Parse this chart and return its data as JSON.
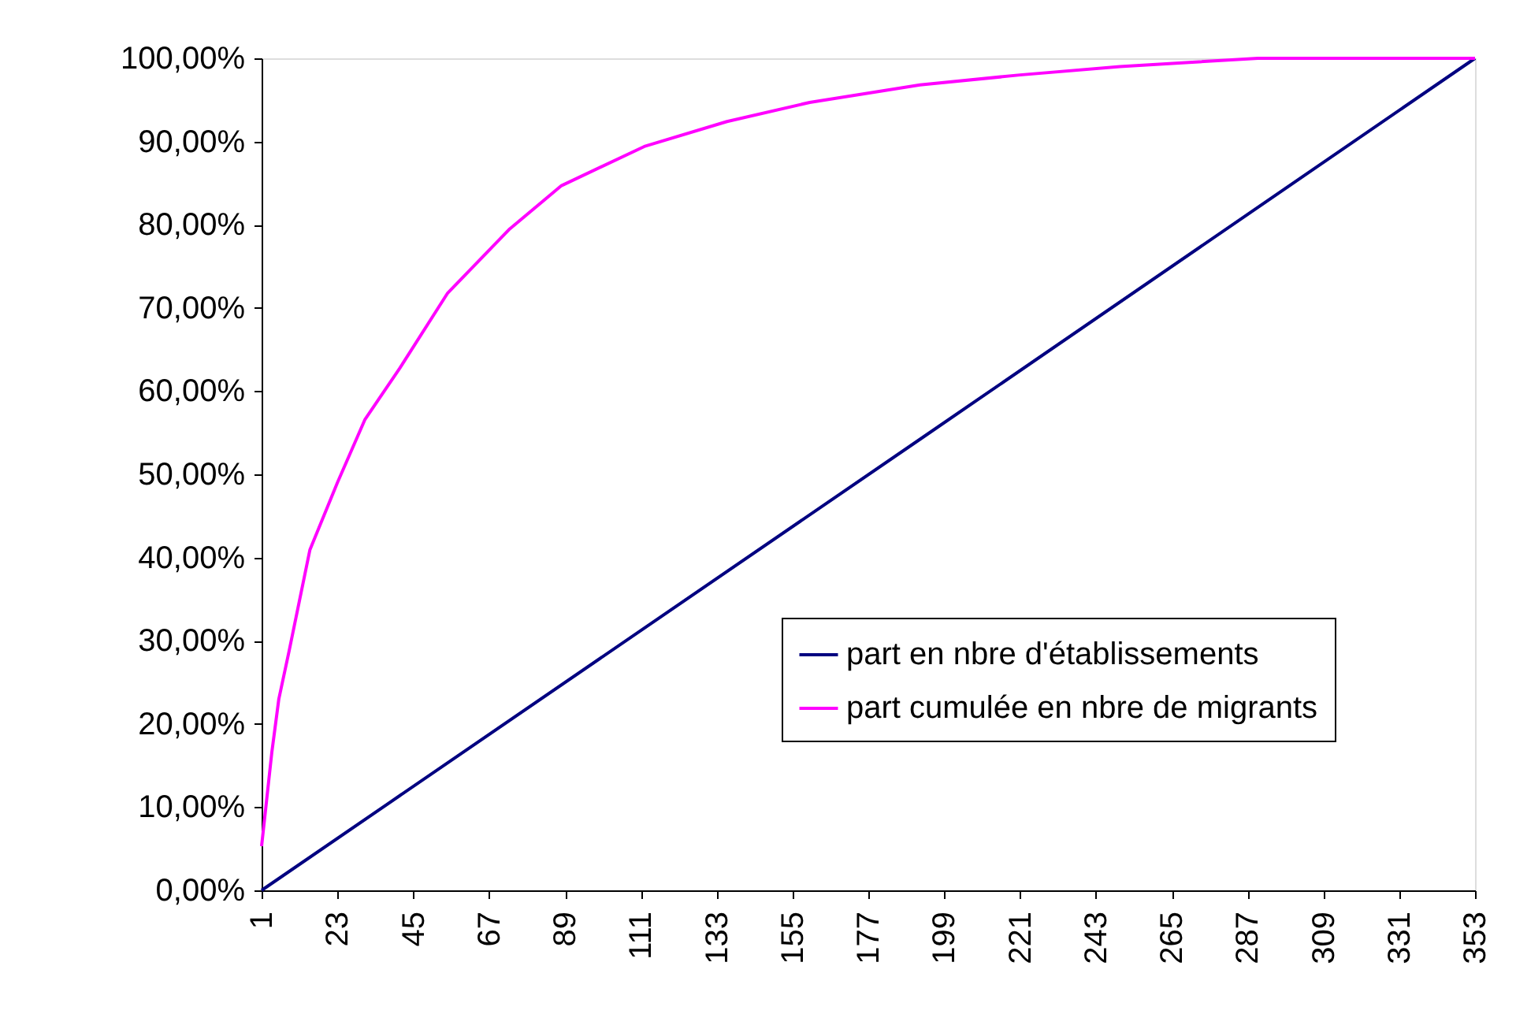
{
  "chart_data": {
    "type": "line",
    "xlim": [
      1,
      353
    ],
    "xticks": [
      1,
      23,
      45,
      67,
      89,
      111,
      133,
      155,
      177,
      199,
      221,
      243,
      265,
      287,
      309,
      331,
      353
    ],
    "ylim": [
      0,
      100
    ],
    "yticks": [
      {
        "value": 0,
        "label": "0,00%"
      },
      {
        "value": 10,
        "label": "10,00%"
      },
      {
        "value": 20,
        "label": "20,00%"
      },
      {
        "value": 30,
        "label": "30,00%"
      },
      {
        "value": 40,
        "label": "40,00%"
      },
      {
        "value": 50,
        "label": "50,00%"
      },
      {
        "value": 60,
        "label": "60,00%"
      },
      {
        "value": 70,
        "label": "70,00%"
      },
      {
        "value": 80,
        "label": "80,00%"
      },
      {
        "value": 90,
        "label": "90,00%"
      },
      {
        "value": 100,
        "label": "100,00%"
      }
    ],
    "grid": false,
    "legend": "right",
    "marker": "none",
    "line_style": "solid",
    "series": [
      {
        "name": "part en nbre d'établissements",
        "color": "#000080",
        "x": [
          1,
          193,
          353
        ],
        "values": [
          0,
          54.5,
          100
        ]
      },
      {
        "name": "part cumulée en nbre de migrants",
        "color": "#ff00ff",
        "x": [
          1,
          4,
          6,
          9,
          15,
          23,
          31,
          41,
          55,
          73,
          88,
          112,
          136,
          160,
          192,
          221,
          250,
          270,
          290,
          353
        ],
        "values": [
          5.3,
          16.7,
          23,
          28.8,
          40.9,
          49,
          56.6,
          62.7,
          71.8,
          79.5,
          84.7,
          89.4,
          92.4,
          94.7,
          96.8,
          98,
          99,
          99.5,
          100,
          100
        ]
      }
    ]
  }
}
